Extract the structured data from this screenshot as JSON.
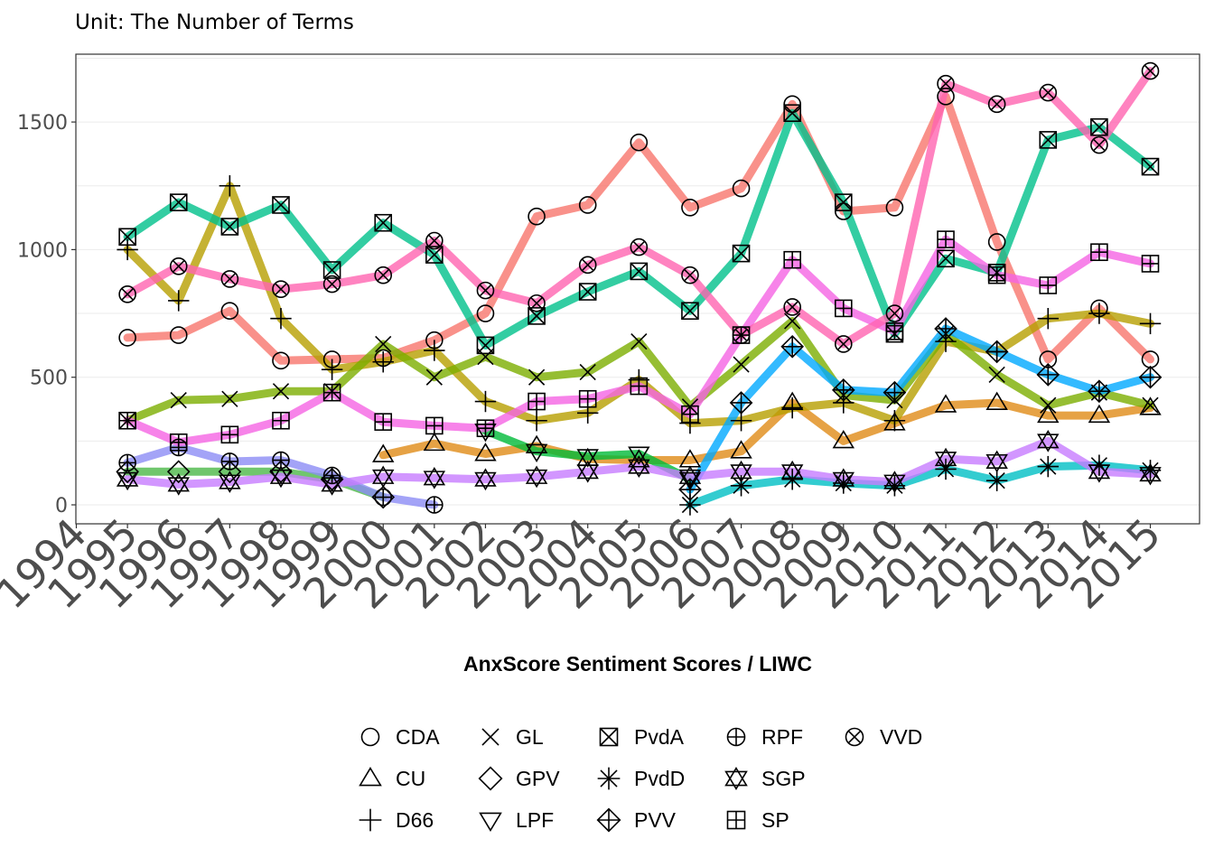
{
  "chart_data": {
    "type": "line",
    "subtitle": "Unit: The Number of Terms",
    "xlabel": "AnxScore Sentiment Scores / LIWC",
    "ylabel": "",
    "x_ticks": [
      "1994",
      "1995",
      "1996",
      "1997",
      "1998",
      "1999",
      "2000",
      "2001",
      "2002",
      "2003",
      "2004",
      "2005",
      "2006",
      "2007",
      "2008",
      "2009",
      "2010",
      "2011",
      "2012",
      "2013",
      "2014",
      "2015"
    ],
    "y_ticks": [
      0,
      500,
      1000,
      1500
    ],
    "xlim": [
      1994,
      2015.5
    ],
    "ylim": [
      -70,
      1760
    ],
    "grid": true,
    "legend_position": "bottom",
    "series": [
      {
        "name": "CDA",
        "marker": "circle",
        "color": "#F8766D",
        "x": [
          1995,
          1996,
          1997,
          1998,
          1999,
          2000,
          2001,
          2002,
          2003,
          2004,
          2005,
          2006,
          2007,
          2008,
          2009,
          2010,
          2011,
          2012,
          2013,
          2014,
          2015
        ],
        "y": [
          655,
          665,
          760,
          565,
          570,
          575,
          645,
          750,
          1130,
          1175,
          1420,
          1165,
          1240,
          1570,
          1150,
          1165,
          1600,
          1030,
          570,
          770,
          570
        ]
      },
      {
        "name": "CU",
        "marker": "triangle",
        "color": "#E08B16",
        "x": [
          2000,
          2001,
          2002,
          2003,
          2004,
          2005,
          2006,
          2007,
          2008,
          2009,
          2010,
          2011,
          2012,
          2013,
          2014,
          2015
        ],
        "y": [
          195,
          240,
          200,
          230,
          180,
          175,
          175,
          210,
          400,
          250,
          320,
          390,
          400,
          350,
          350,
          380
        ]
      },
      {
        "name": "D66",
        "marker": "plus",
        "color": "#B79F00",
        "x": [
          1995,
          1996,
          1997,
          1998,
          1999,
          2000,
          2001,
          2002,
          2003,
          2004,
          2005,
          2006,
          2007,
          2008,
          2009,
          2010,
          2011,
          2012,
          2013,
          2014,
          2015
        ],
        "y": [
          1000,
          800,
          1250,
          730,
          530,
          560,
          605,
          405,
          330,
          360,
          490,
          320,
          330,
          380,
          400,
          330,
          640,
          600,
          730,
          750,
          710
        ]
      },
      {
        "name": "GL",
        "marker": "x",
        "color": "#7CAE00",
        "x": [
          1995,
          1996,
          1997,
          1998,
          1999,
          2000,
          2001,
          2002,
          2003,
          2004,
          2005,
          2006,
          2007,
          2008,
          2009,
          2010,
          2011,
          2012,
          2013,
          2014,
          2015
        ],
        "y": [
          330,
          410,
          415,
          445,
          445,
          630,
          500,
          580,
          500,
          520,
          640,
          385,
          550,
          720,
          430,
          410,
          670,
          510,
          390,
          440,
          390
        ]
      },
      {
        "name": "GPV",
        "marker": "diamond",
        "color": "#4CB848",
        "x": [
          1995,
          1996,
          1997,
          1998,
          1999,
          2000
        ],
        "y": [
          130,
          130,
          130,
          130,
          100,
          30
        ]
      },
      {
        "name": "LPF",
        "marker": "triangle-down",
        "color": "#00BA38",
        "x": [
          2002,
          2003,
          2004,
          2005,
          2006
        ],
        "y": [
          290,
          210,
          190,
          200,
          100
        ]
      },
      {
        "name": "PvdA",
        "marker": "square-x",
        "color": "#00C08B",
        "x": [
          1995,
          1996,
          1997,
          1998,
          1999,
          2000,
          2001,
          2002,
          2003,
          2004,
          2005,
          2006,
          2007,
          2008,
          2009,
          2010,
          2011,
          2012,
          2013,
          2014,
          2015
        ],
        "y": [
          1050,
          1185,
          1090,
          1175,
          920,
          1105,
          980,
          625,
          740,
          835,
          915,
          760,
          985,
          1535,
          1185,
          670,
          965,
          910,
          1430,
          1480,
          1325
        ]
      },
      {
        "name": "PvdD",
        "marker": "asterisk",
        "color": "#00BFC4",
        "x": [
          2006,
          2007,
          2008,
          2009,
          2010,
          2011,
          2012,
          2013,
          2014,
          2015
        ],
        "y": [
          0,
          75,
          100,
          85,
          75,
          140,
          95,
          150,
          155,
          135
        ]
      },
      {
        "name": "PVV",
        "marker": "diamond-plus",
        "color": "#00A9FF",
        "x": [
          2006,
          2007,
          2008,
          2009,
          2010,
          2011,
          2012,
          2013,
          2014,
          2015
        ],
        "y": [
          60,
          400,
          620,
          450,
          440,
          690,
          600,
          510,
          445,
          500
        ]
      },
      {
        "name": "RPF",
        "marker": "circle-plus",
        "color": "#8C8CF5",
        "x": [
          1995,
          1996,
          1997,
          1998,
          1999,
          2000,
          2001
        ],
        "y": [
          165,
          225,
          170,
          175,
          115,
          30,
          0
        ]
      },
      {
        "name": "SGP",
        "marker": "star-of-david",
        "color": "#C77CFF",
        "x": [
          1995,
          1996,
          1997,
          1998,
          1999,
          2000,
          2001,
          2002,
          2003,
          2004,
          2005,
          2006,
          2007,
          2008,
          2009,
          2010,
          2011,
          2012,
          2013,
          2014,
          2015
        ],
        "y": [
          100,
          80,
          90,
          110,
          80,
          110,
          105,
          100,
          110,
          130,
          150,
          110,
          130,
          130,
          100,
          90,
          180,
          170,
          250,
          130,
          120
        ]
      },
      {
        "name": "SP",
        "marker": "square-plus",
        "color": "#F564E3",
        "x": [
          1995,
          1996,
          1997,
          1998,
          1999,
          2000,
          2001,
          2002,
          2003,
          2004,
          2005,
          2006,
          2007,
          2008,
          2009,
          2010,
          2011,
          2012,
          2013,
          2014,
          2015
        ],
        "y": [
          330,
          245,
          275,
          330,
          440,
          325,
          310,
          300,
          405,
          415,
          465,
          355,
          665,
          960,
          770,
          680,
          1040,
          900,
          860,
          990,
          945
        ]
      },
      {
        "name": "VVD",
        "marker": "circle-x",
        "color": "#FF64B0",
        "x": [
          1995,
          1996,
          1997,
          1998,
          1999,
          2000,
          2001,
          2002,
          2003,
          2004,
          2005,
          2006,
          2007,
          2008,
          2009,
          2010,
          2011,
          2012,
          2013,
          2014,
          2015
        ],
        "y": [
          825,
          935,
          885,
          845,
          865,
          900,
          1035,
          840,
          790,
          940,
          1010,
          900,
          665,
          775,
          630,
          750,
          1650,
          1570,
          1615,
          1410,
          1700
        ]
      }
    ]
  }
}
